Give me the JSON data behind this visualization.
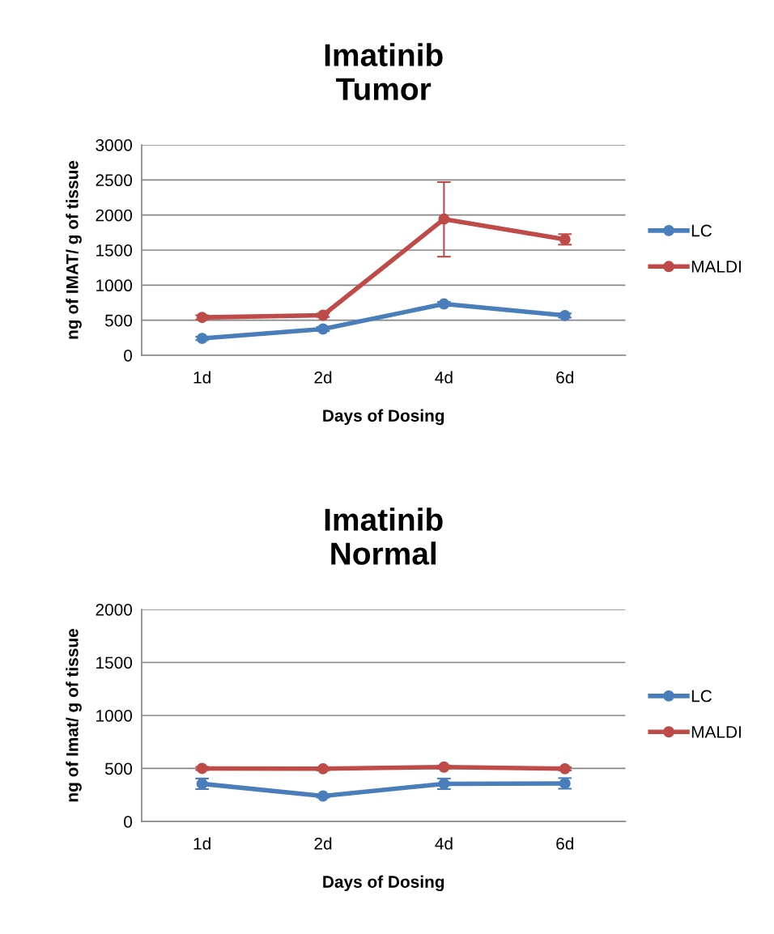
{
  "chart_data": [
    {
      "type": "line",
      "title": "Imatinib\nTumor",
      "xlabel": "Days of Dosing",
      "ylabel": "ng of IMAT/ g of tissue",
      "categories": [
        "1d",
        "2d",
        "4d",
        "6d"
      ],
      "ylim": [
        0,
        3000
      ],
      "yticks": [
        0,
        500,
        1000,
        1500,
        2000,
        2500,
        3000
      ],
      "grid": "y",
      "legend": "right",
      "marker": "circle",
      "line_style": "solid",
      "series": [
        {
          "name": "LC",
          "color": "#4a7ebb",
          "values": [
            241,
            375,
            732,
            567
          ],
          "errors": [
            25,
            30,
            30,
            30
          ]
        },
        {
          "name": "MALDI",
          "color": "#be4b48",
          "values": [
            540,
            571,
            1942,
            1652
          ],
          "errors": [
            30,
            25,
            [
              1406,
              2469
            ],
            75
          ]
        }
      ]
    },
    {
      "type": "line",
      "title": "Imatinib\nNormal",
      "xlabel": "Days of Dosing",
      "ylabel": "ng of Imat/ g of tissue",
      "categories": [
        "1d",
        "2d",
        "4d",
        "6d"
      ],
      "ylim": [
        0,
        2000
      ],
      "yticks": [
        0,
        500,
        1000,
        1500,
        2000
      ],
      "grid": "y",
      "legend": "right",
      "marker": "circle",
      "line_style": "solid",
      "series": [
        {
          "name": "LC",
          "color": "#4a7ebb",
          "values": [
            355,
            240,
            355,
            359
          ],
          "errors": [
            50,
            15,
            50,
            50
          ]
        },
        {
          "name": "MALDI",
          "color": "#be4b48",
          "values": [
            500,
            497,
            513,
            497
          ],
          "errors": [
            15,
            15,
            15,
            15
          ]
        }
      ]
    }
  ]
}
